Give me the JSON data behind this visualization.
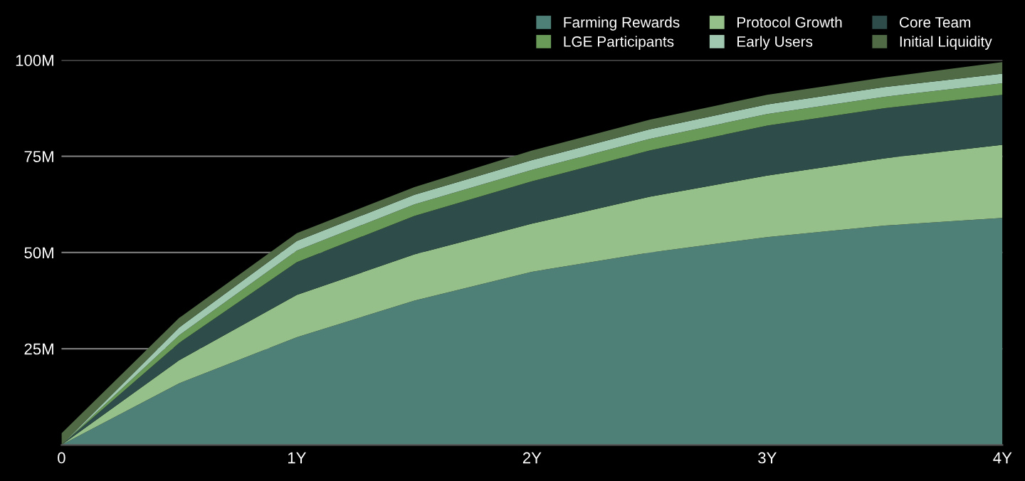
{
  "chart_data": {
    "type": "area",
    "stacked": true,
    "x": [
      0,
      0.5,
      1,
      1.5,
      2,
      2.5,
      3,
      3.5,
      4
    ],
    "series": [
      {
        "name": "Farming Rewards",
        "color": "#4e8078",
        "values": [
          0,
          16,
          28,
          37.5,
          45,
          50,
          54,
          57,
          59
        ]
      },
      {
        "name": "Protocol Growth",
        "color": "#96c08a",
        "values": [
          0,
          6,
          11,
          12,
          12.5,
          14.5,
          16,
          17.5,
          19
        ]
      },
      {
        "name": "Core Team",
        "color": "#2e4d4a",
        "values": [
          0,
          4.5,
          8.5,
          10,
          11,
          12,
          13,
          13,
          13
        ]
      },
      {
        "name": "LGE Participants",
        "color": "#6a9a58",
        "values": [
          0,
          2,
          3,
          3,
          3,
          3,
          3,
          3,
          3
        ]
      },
      {
        "name": "Early Users",
        "color": "#a0c8b0",
        "values": [
          0,
          2,
          2.5,
          2.5,
          2.5,
          2.5,
          2.5,
          2.5,
          2.5
        ]
      },
      {
        "name": "Initial Liquidity",
        "color": "#4f6a45",
        "values": [
          3,
          2.5,
          2,
          2,
          2.5,
          2.5,
          2.5,
          2.5,
          3
        ]
      }
    ],
    "xlim": [
      0,
      4
    ],
    "xticks": [
      {
        "value": 0,
        "label": "0"
      },
      {
        "value": 1,
        "label": "1Y"
      },
      {
        "value": 2,
        "label": "2Y"
      },
      {
        "value": 3,
        "label": "3Y"
      },
      {
        "value": 4,
        "label": "4Y"
      }
    ],
    "ylim": [
      0,
      100
    ],
    "yticks": [
      {
        "value": 25,
        "label": "25M"
      },
      {
        "value": 50,
        "label": "50M"
      },
      {
        "value": 75,
        "label": "75M"
      },
      {
        "value": 100,
        "label": "100M"
      }
    ],
    "grid": "y",
    "legend": "top right"
  }
}
